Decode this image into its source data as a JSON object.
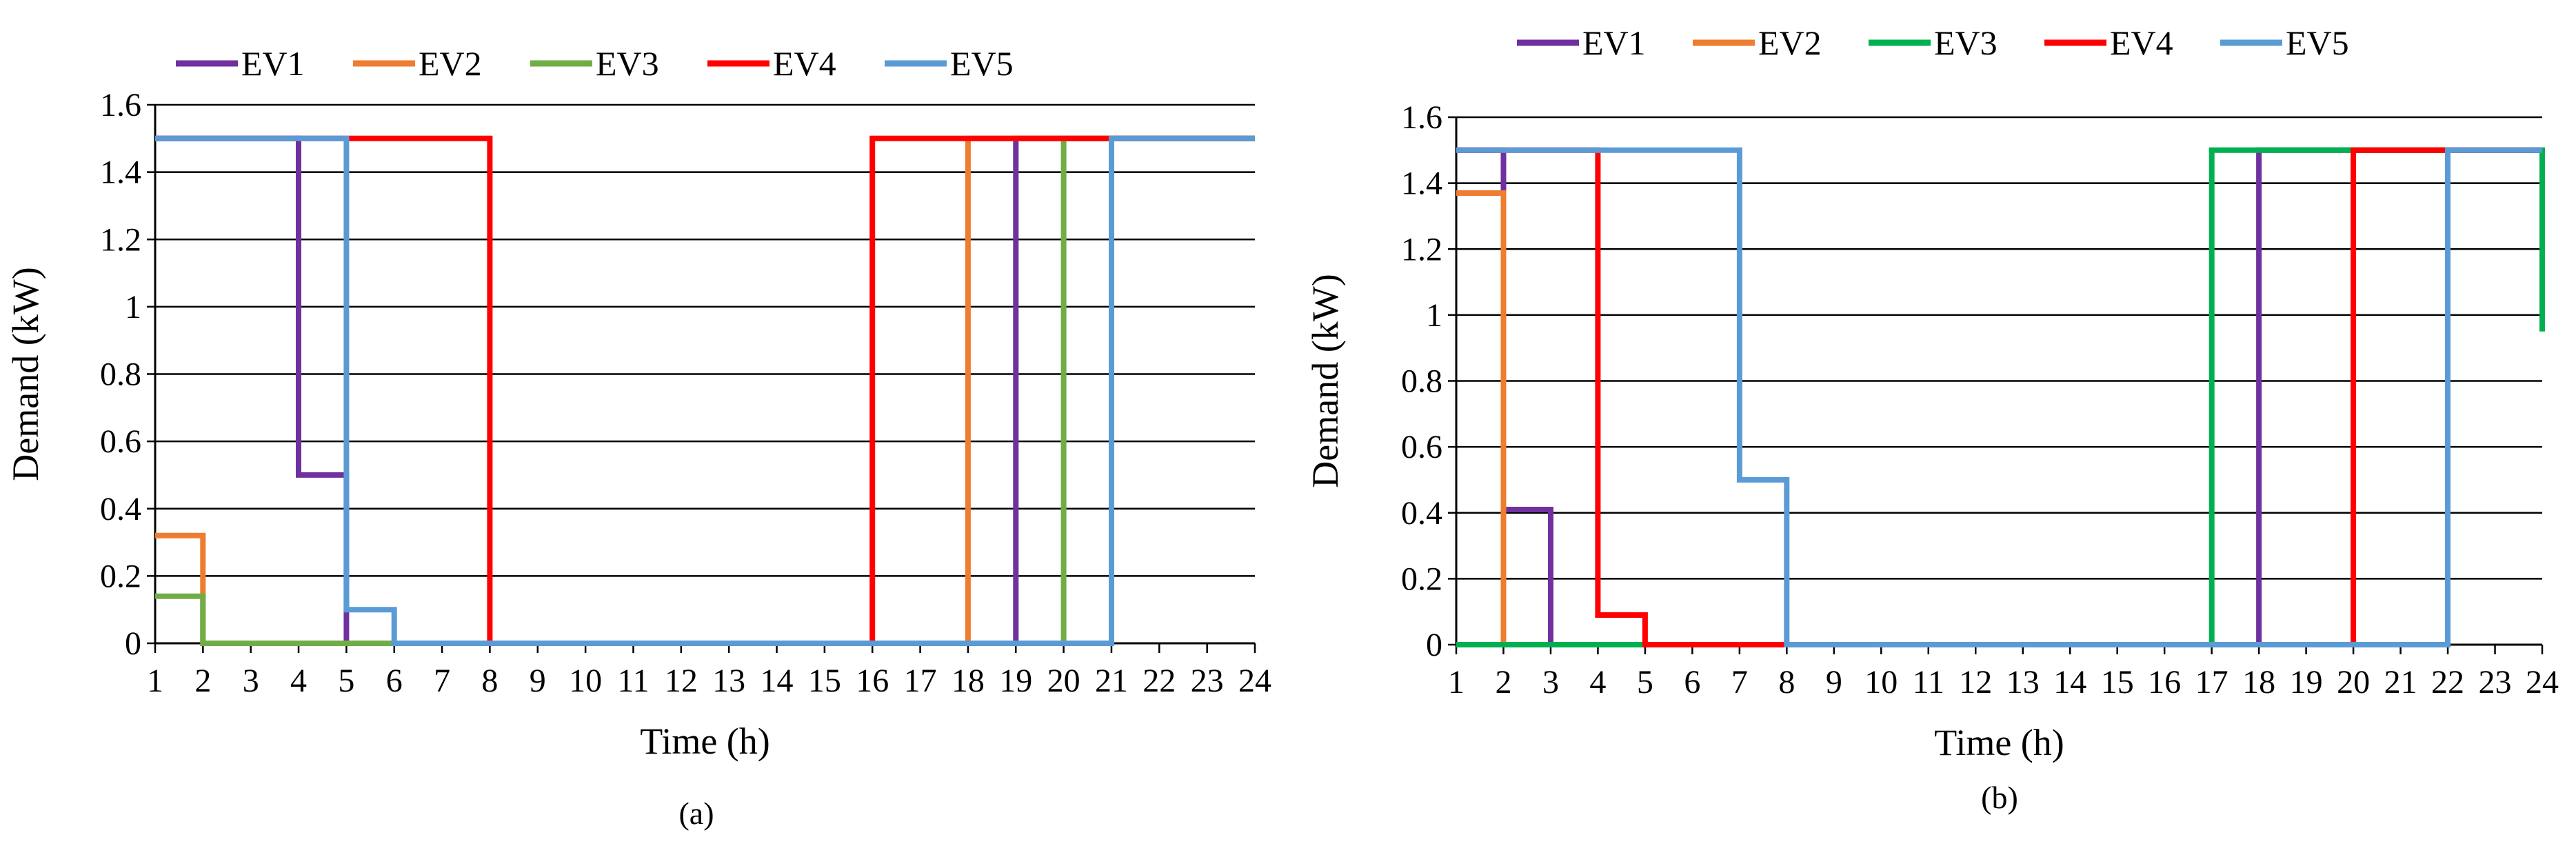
{
  "chart_data": [
    {
      "type": "line",
      "step": true,
      "panel_label": "(a)",
      "xlabel": "Time (h)",
      "ylabel": "Demand (kW)",
      "xlim": [
        1,
        24
      ],
      "ylim": [
        0,
        1.6
      ],
      "x_ticks": [
        1,
        2,
        3,
        4,
        5,
        6,
        7,
        8,
        9,
        10,
        11,
        12,
        13,
        14,
        15,
        16,
        17,
        18,
        19,
        20,
        21,
        22,
        23,
        24
      ],
      "y_ticks": [
        "0",
        "0.2",
        "0.4",
        "0.6",
        "0.8",
        "1",
        "1.2",
        "1.4",
        "1.6"
      ],
      "legend_position": "top-left",
      "series": [
        {
          "name": "EV1",
          "color": "#7030A0",
          "points": [
            [
              1,
              1.5
            ],
            [
              4,
              1.5
            ],
            [
              4,
              0.5
            ],
            [
              5,
              0.5
            ],
            [
              5,
              0
            ],
            [
              19,
              0
            ],
            [
              19,
              1.5
            ],
            [
              24,
              1.5
            ]
          ]
        },
        {
          "name": "EV2",
          "color": "#ED7D31",
          "points": [
            [
              1,
              0.32
            ],
            [
              2,
              0.32
            ],
            [
              2,
              0
            ],
            [
              18,
              0
            ],
            [
              18,
              1.5
            ],
            [
              24,
              1.5
            ]
          ]
        },
        {
          "name": "EV3",
          "color": "#70AD47",
          "points": [
            [
              1,
              0.14
            ],
            [
              2,
              0.14
            ],
            [
              2,
              0
            ],
            [
              20,
              0
            ],
            [
              20,
              1.5
            ],
            [
              24,
              1.5
            ]
          ]
        },
        {
          "name": "EV4",
          "color": "#FF0000",
          "points": [
            [
              1,
              1.5
            ],
            [
              8,
              1.5
            ],
            [
              8,
              0
            ],
            [
              16,
              0
            ],
            [
              16,
              1.5
            ],
            [
              24,
              1.5
            ]
          ]
        },
        {
          "name": "EV5",
          "color": "#5B9BD5",
          "points": [
            [
              1,
              1.5
            ],
            [
              5,
              1.5
            ],
            [
              5,
              0.1
            ],
            [
              6,
              0.1
            ],
            [
              6,
              0
            ],
            [
              21,
              0
            ],
            [
              21,
              1.5
            ],
            [
              24,
              1.5
            ]
          ]
        }
      ]
    },
    {
      "type": "line",
      "step": true,
      "panel_label": "(b)",
      "xlabel": "Time (h)",
      "ylabel": "Demand (kW)",
      "xlim": [
        1,
        24
      ],
      "ylim": [
        0,
        1.6
      ],
      "x_ticks": [
        1,
        2,
        3,
        4,
        5,
        6,
        7,
        8,
        9,
        10,
        11,
        12,
        13,
        14,
        15,
        16,
        17,
        18,
        19,
        20,
        21,
        22,
        23,
        24
      ],
      "y_ticks": [
        "0",
        "0.2",
        "0.4",
        "0.6",
        "0.8",
        "1",
        "1.2",
        "1.4",
        "1.6"
      ],
      "legend_position": "top-left",
      "series": [
        {
          "name": "EV1",
          "color": "#7030A0",
          "points": [
            [
              1,
              1.5
            ],
            [
              2,
              1.5
            ],
            [
              2,
              0.41
            ],
            [
              3,
              0.41
            ],
            [
              3,
              0
            ],
            [
              18,
              0
            ],
            [
              18,
              1.5
            ],
            [
              24,
              1.5
            ]
          ]
        },
        {
          "name": "EV2",
          "color": "#ED7D31",
          "points": [
            [
              1,
              1.37
            ],
            [
              2,
              1.37
            ],
            [
              2,
              0
            ],
            [
              22,
              0
            ],
            [
              22,
              1.5
            ],
            [
              24,
              1.5
            ]
          ]
        },
        {
          "name": "EV3",
          "color": "#00B050",
          "points": [
            [
              1,
              0
            ],
            [
              17,
              0
            ],
            [
              17,
              1.5
            ],
            [
              24,
              1.5
            ],
            [
              24,
              0.95
            ]
          ]
        },
        {
          "name": "EV4",
          "color": "#FF0000",
          "points": [
            [
              1,
              1.5
            ],
            [
              4,
              1.5
            ],
            [
              4,
              0.09
            ],
            [
              5,
              0.09
            ],
            [
              5,
              0
            ],
            [
              20,
              0
            ],
            [
              20,
              1.5
            ],
            [
              24,
              1.5
            ]
          ]
        },
        {
          "name": "EV5",
          "color": "#5B9BD5",
          "points": [
            [
              1,
              1.5
            ],
            [
              7,
              1.5
            ],
            [
              7,
              0.5
            ],
            [
              8,
              0.5
            ],
            [
              8,
              0
            ],
            [
              22,
              0
            ],
            [
              22,
              1.5
            ],
            [
              24,
              1.5
            ]
          ]
        }
      ]
    }
  ]
}
